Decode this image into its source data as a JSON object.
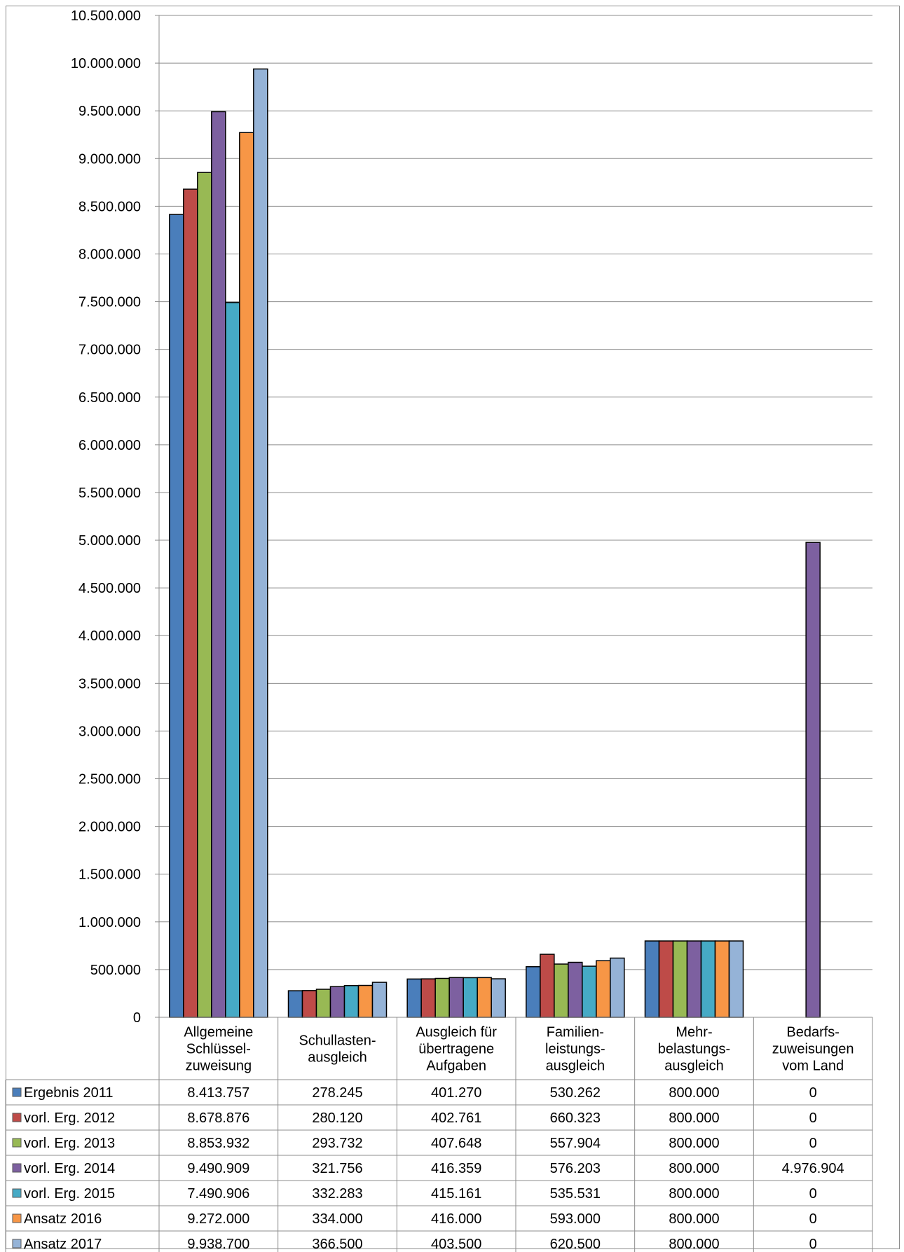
{
  "chart_data": {
    "type": "bar",
    "categories": [
      [
        "Allgemeine",
        "Schlüssel-",
        "zuweisung"
      ],
      [
        "Schullasten-",
        "ausgleich"
      ],
      [
        "Ausgleich für",
        "übertragene",
        "Aufgaben"
      ],
      [
        "Familien-",
        "leistungs-",
        "ausgleich"
      ],
      [
        "Mehr-",
        "belastungs-",
        "ausgleich"
      ],
      [
        "Bedarfs-",
        "zuweisungen",
        "vom Land"
      ]
    ],
    "ylim": [
      0,
      10500000
    ],
    "ytick_step": 500000,
    "yticks": [
      "0",
      "500.000",
      "1.000.000",
      "1.500.000",
      "2.000.000",
      "2.500.000",
      "3.000.000",
      "3.500.000",
      "4.000.000",
      "4.500.000",
      "5.000.000",
      "5.500.000",
      "6.000.000",
      "6.500.000",
      "7.000.000",
      "7.500.000",
      "8.000.000",
      "8.500.000",
      "9.000.000",
      "9.500.000",
      "10.000.000",
      "10.500.000"
    ],
    "grid": true,
    "legend": "data-table",
    "series": [
      {
        "name": "Ergebnis 2011",
        "color": "#4a7ebb",
        "values": [
          8413757,
          278245,
          401270,
          530262,
          800000,
          0
        ],
        "labels": [
          "8.413.757",
          "278.245",
          "401.270",
          "530.262",
          "800.000",
          "0"
        ]
      },
      {
        "name": "vorl. Erg. 2012",
        "color": "#be4b48",
        "values": [
          8678876,
          280120,
          402761,
          660323,
          800000,
          0
        ],
        "labels": [
          "8.678.876",
          "280.120",
          "402.761",
          "660.323",
          "800.000",
          "0"
        ]
      },
      {
        "name": "vorl. Erg. 2013",
        "color": "#98b954",
        "values": [
          8853932,
          293732,
          407648,
          557904,
          800000,
          0
        ],
        "labels": [
          "8.853.932",
          "293.732",
          "407.648",
          "557.904",
          "800.000",
          "0"
        ]
      },
      {
        "name": "vorl. Erg. 2014",
        "color": "#7d60a0",
        "values": [
          9490909,
          321756,
          416359,
          576203,
          800000,
          4976904
        ],
        "labels": [
          "9.490.909",
          "321.756",
          "416.359",
          "576.203",
          "800.000",
          "4.976.904"
        ]
      },
      {
        "name": "vorl. Erg. 2015",
        "color": "#46aac5",
        "values": [
          7490906,
          332283,
          415161,
          535531,
          800000,
          0
        ],
        "labels": [
          "7.490.906",
          "332.283",
          "415.161",
          "535.531",
          "800.000",
          "0"
        ]
      },
      {
        "name": "Ansatz 2016",
        "color": "#f79646",
        "values": [
          9272000,
          334000,
          416000,
          593000,
          800000,
          0
        ],
        "labels": [
          "9.272.000",
          "334.000",
          "416.000",
          "593.000",
          "800.000",
          "0"
        ]
      },
      {
        "name": "Ansatz 2017",
        "color": "#95b3d7",
        "values": [
          9938700,
          366500,
          403500,
          620500,
          800000,
          0
        ],
        "labels": [
          "9.938.700",
          "366.500",
          "403.500",
          "620.500",
          "800.000",
          "0"
        ]
      }
    ]
  }
}
